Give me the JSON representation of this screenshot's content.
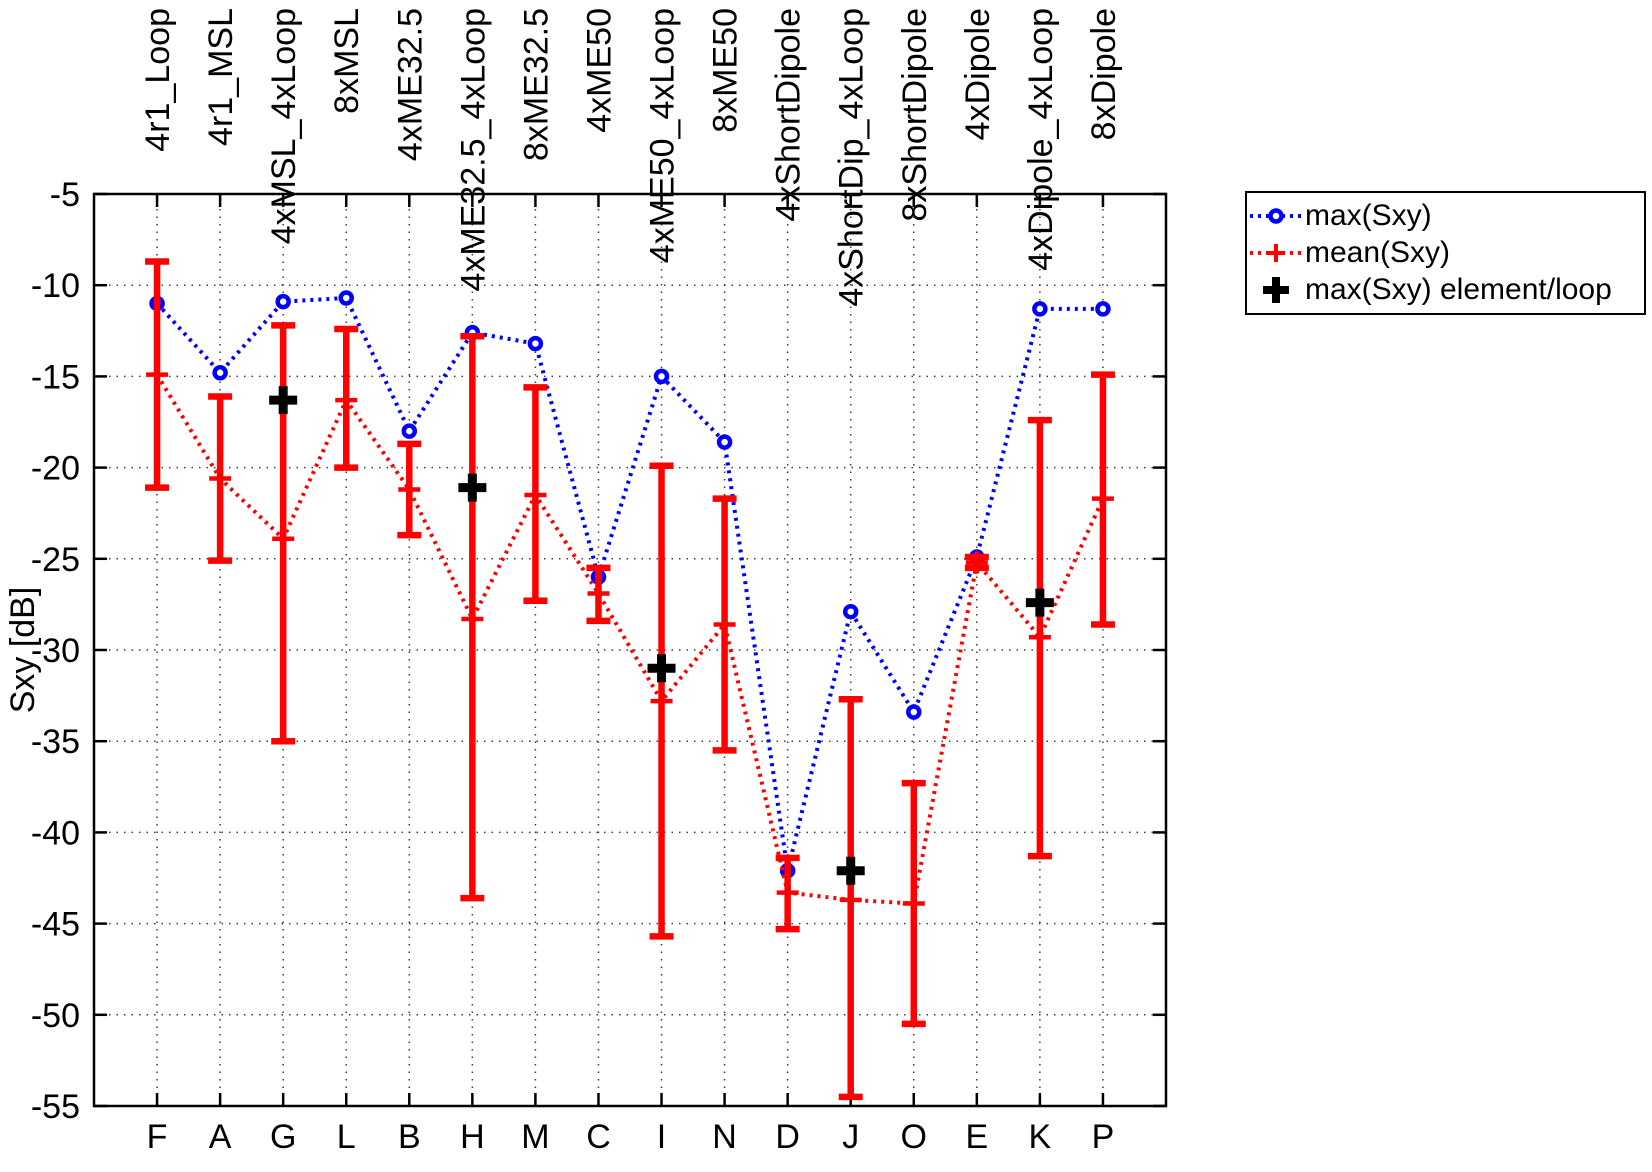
{
  "axis": {
    "ylabel": "Sxy [dB]"
  },
  "legend": {
    "items": [
      {
        "label": "max(Sxy)"
      },
      {
        "label": "mean(Sxy)"
      },
      {
        "label": "max(Sxy) element/loop"
      }
    ]
  },
  "chart_data": {
    "type": "line",
    "title": "",
    "xlabel": "",
    "ylabel": "Sxy [dB]",
    "ylim": [
      -55,
      -5
    ],
    "yticks": [
      -5,
      -10,
      -15,
      -20,
      -25,
      -30,
      -35,
      -40,
      -45,
      -50,
      -55
    ],
    "grid": true,
    "legend_position": "outside-top-right",
    "x_letters": [
      "F",
      "A",
      "G",
      "L",
      "B",
      "H",
      "M",
      "C",
      "I",
      "N",
      "D",
      "J",
      "O",
      "E",
      "K",
      "P"
    ],
    "top_labels": [
      "4r1_Loop",
      "4r1_MSL",
      "4xMSL_4xLoop",
      "8xMSL",
      "4xME32.5",
      "4xME32.5_4xLoop",
      "8xME32.5",
      "4xME50",
      "4xME50_4xLoop",
      "8xME50",
      "4xShortDipole",
      "4xShortDip_4xLoop",
      "8xShortDipole",
      "4xDipole",
      "4xDipole_4xLoop",
      "8xDipole"
    ],
    "series": [
      {
        "name": "max(Sxy)",
        "color": "#0000ff",
        "line": "dotted",
        "marker": "circle",
        "values": [
          -11.0,
          -14.8,
          -10.9,
          -10.7,
          -18.0,
          -12.6,
          -13.2,
          -26.0,
          -15.0,
          -18.6,
          -42.1,
          -27.9,
          -33.4,
          -24.9,
          -11.3,
          -11.3
        ]
      },
      {
        "name": "mean(Sxy)",
        "color": "#ff0000",
        "line": "dotted",
        "marker": "plus",
        "values": [
          -14.9,
          -20.6,
          -23.9,
          -16.3,
          -21.2,
          -28.3,
          -21.5,
          -26.9,
          -32.8,
          -28.6,
          -43.3,
          -43.7,
          -43.9,
          -25.2,
          -29.3,
          -21.7
        ],
        "err_top": [
          -8.7,
          -16.1,
          -12.2,
          -12.4,
          -18.7,
          -12.8,
          -15.6,
          -25.5,
          -19.9,
          -21.7,
          -41.4,
          -32.7,
          -37.3,
          -24.9,
          -17.4,
          -14.9
        ],
        "err_bottom": [
          -21.1,
          -25.1,
          -35.0,
          -20.0,
          -23.7,
          -43.6,
          -27.3,
          -28.4,
          -45.7,
          -35.5,
          -45.3,
          -54.5,
          -50.5,
          -25.5,
          -41.3,
          -28.6
        ]
      },
      {
        "name": "max(Sxy) element/loop",
        "color": "#000000",
        "line": "none",
        "marker": "bold-plus",
        "values": [
          null,
          null,
          -16.3,
          null,
          null,
          -21.1,
          null,
          null,
          -31.0,
          null,
          null,
          -42.1,
          null,
          null,
          -27.4,
          null
        ]
      }
    ]
  }
}
